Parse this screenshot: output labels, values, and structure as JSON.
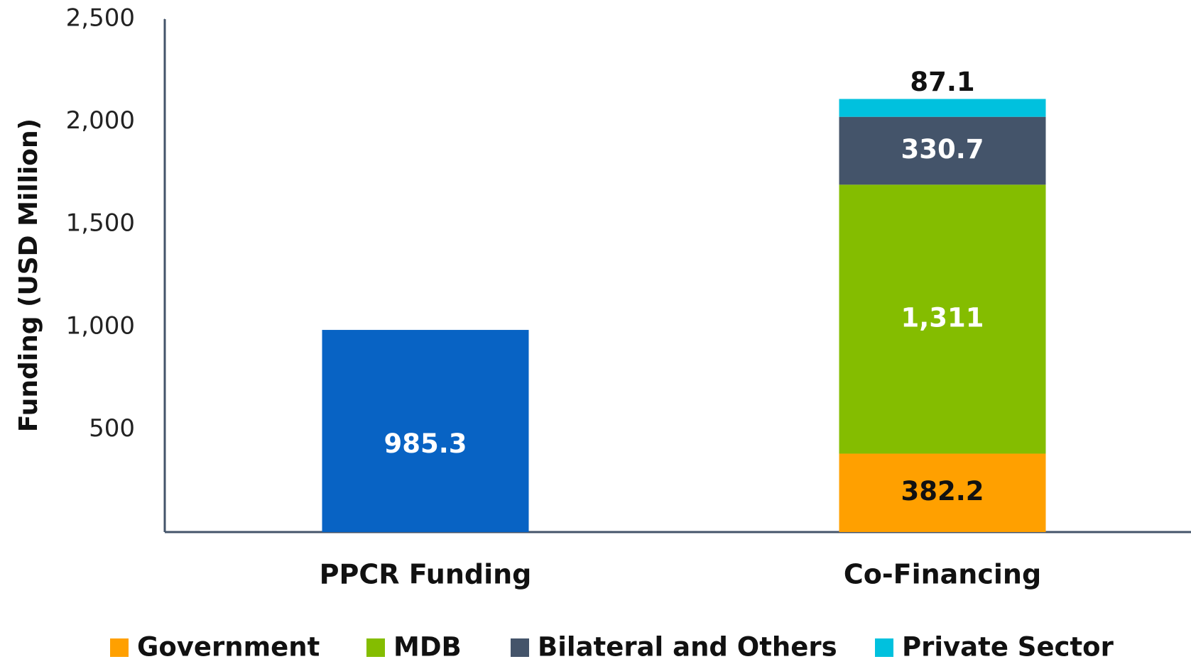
{
  "chart_data": {
    "type": "stacked-bar",
    "y_label": "Funding (USD Million)",
    "categories": [
      "PPCR Funding",
      "Co-Financing"
    ],
    "values": [
      985.3,
      null
    ],
    "color": "#0863c4",
    "series": [
      {
        "name": "Government",
        "color": "#ffa000",
        "values": [
          null,
          382.2
        ]
      },
      {
        "name": "MDB",
        "color": "#84bd00",
        "values": [
          null,
          1311
        ],
        "value_labels": [
          null,
          "1,311"
        ]
      },
      {
        "name": "Bilateral and Others",
        "color": "#44546a",
        "values": [
          null,
          330.7
        ]
      },
      {
        "name": "Private Sector",
        "color": "#00c1de",
        "values": [
          null,
          87.1
        ]
      }
    ],
    "ylim": [
      0,
      2500
    ],
    "yticks": [
      500,
      {
        "value": 1000,
        "label": "1,000"
      },
      {
        "value": 1500,
        "label": "1,500"
      },
      {
        "value": 2000,
        "label": "2,000"
      },
      {
        "value": 2500,
        "label": "2,500"
      }
    ],
    "grid": false,
    "legend": "bottom"
  }
}
